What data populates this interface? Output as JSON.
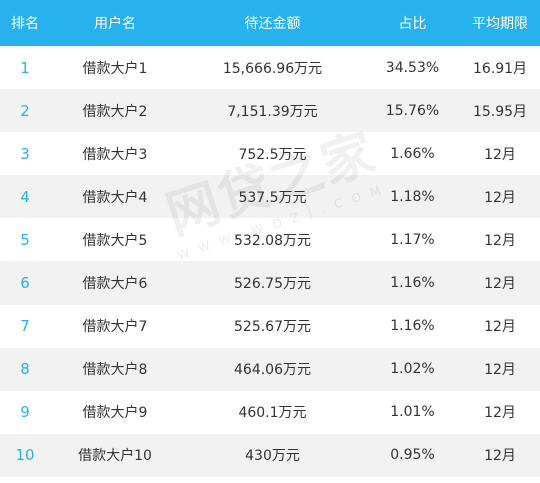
{
  "header": {
    "rank": "排名",
    "user": "用户名",
    "amount": "待还金额",
    "ratio": "占比",
    "term": "平均期限"
  },
  "rows": [
    {
      "rank": "1",
      "user": "借款大户1",
      "amount": "15,666.96万元",
      "ratio": "34.53%",
      "term": "16.91月"
    },
    {
      "rank": "2",
      "user": "借款大户2",
      "amount": "7,151.39万元",
      "ratio": "15.76%",
      "term": "15.95月"
    },
    {
      "rank": "3",
      "user": "借款大户3",
      "amount": "752.5万元",
      "ratio": "1.66%",
      "term": "12月"
    },
    {
      "rank": "4",
      "user": "借款大户4",
      "amount": "537.5万元",
      "ratio": "1.18%",
      "term": "12月"
    },
    {
      "rank": "5",
      "user": "借款大户5",
      "amount": "532.08万元",
      "ratio": "1.17%",
      "term": "12月"
    },
    {
      "rank": "6",
      "user": "借款大户6",
      "amount": "526.75万元",
      "ratio": "1.16%",
      "term": "12月"
    },
    {
      "rank": "7",
      "user": "借款大户7",
      "amount": "525.67万元",
      "ratio": "1.16%",
      "term": "12月"
    },
    {
      "rank": "8",
      "user": "借款大户8",
      "amount": "464.06万元",
      "ratio": "1.02%",
      "term": "12月"
    },
    {
      "rank": "9",
      "user": "借款大户9",
      "amount": "460.1万元",
      "ratio": "1.01%",
      "term": "12月"
    },
    {
      "rank": "10",
      "user": "借款大户10",
      "amount": "430万元",
      "ratio": "0.95%",
      "term": "12月"
    }
  ],
  "watermark": {
    "logo": "网贷之家",
    "url": "WWW.WDZJ.COM"
  }
}
